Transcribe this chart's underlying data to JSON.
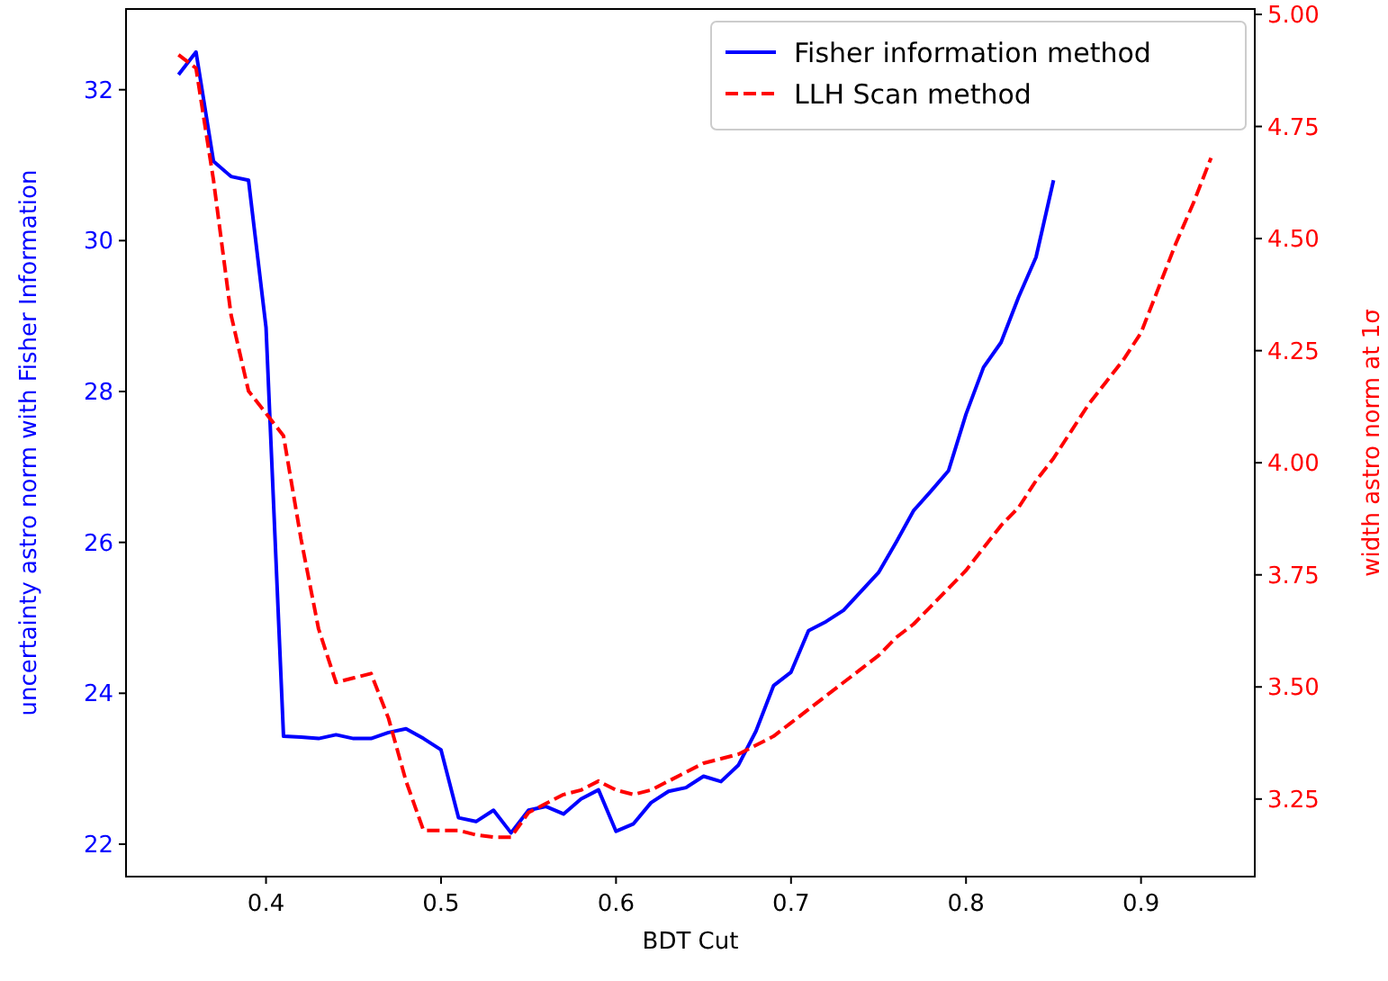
{
  "chart_data": {
    "type": "line",
    "xlabel": "BDT Cut",
    "ylabel": "uncertainty astro norm with Fisher Information",
    "y2label": "width astro norm at 1σ",
    "xlim": [
      0.32,
      0.965
    ],
    "xticks": [
      {
        "value": 0.4,
        "label": "0.4"
      },
      {
        "value": 0.5,
        "label": "0.5"
      },
      {
        "value": 0.6,
        "label": "0.6"
      },
      {
        "value": 0.7,
        "label": "0.7"
      },
      {
        "value": 0.8,
        "label": "0.8"
      },
      {
        "value": 0.9,
        "label": "0.9"
      }
    ],
    "ylim": [
      21.57,
      33.07
    ],
    "yticks": [
      22,
      24,
      26,
      28,
      30,
      32
    ],
    "y2lim": [
      3.077,
      5.012
    ],
    "y2ticks": [
      3.25,
      {
        "value": 3.5,
        "label": "3.50"
      },
      3.75,
      {
        "value": 4.0,
        "label": "4.00"
      },
      4.25,
      {
        "value": 4.5,
        "label": "4.50"
      },
      4.75,
      {
        "value": 5.0,
        "label": "5.00"
      }
    ],
    "legend": "top right",
    "grid": false,
    "series": [
      {
        "name": "Fisher information method",
        "color": "#0000ff",
        "line_style": "solid",
        "x": [
          0.35,
          0.36,
          0.37,
          0.38,
          0.39,
          0.4,
          0.41,
          0.42,
          0.43,
          0.44,
          0.45,
          0.46,
          0.47,
          0.48,
          0.49,
          0.5,
          0.51,
          0.52,
          0.53,
          0.54,
          0.55,
          0.56,
          0.57,
          0.58,
          0.59,
          0.6,
          0.61,
          0.62,
          0.63,
          0.64,
          0.65,
          0.66,
          0.67,
          0.68,
          0.69,
          0.7,
          0.71,
          0.72,
          0.73,
          0.74,
          0.75,
          0.76,
          0.77,
          0.78,
          0.79,
          0.8,
          0.81,
          0.82,
          0.83,
          0.84,
          0.85
        ],
        "values": [
          32.2,
          32.5,
          31.05,
          30.85,
          30.8,
          28.85,
          23.43,
          23.42,
          23.4,
          23.45,
          23.4,
          23.4,
          23.48,
          23.53,
          23.4,
          23.25,
          22.35,
          22.3,
          22.45,
          22.15,
          22.45,
          22.5,
          22.4,
          22.6,
          22.72,
          22.17,
          22.27,
          22.55,
          22.7,
          22.75,
          22.9,
          22.83,
          23.05,
          23.5,
          24.1,
          24.28,
          24.83,
          24.95,
          25.1,
          25.35,
          25.6,
          26.0,
          26.42,
          26.68,
          26.95,
          27.7,
          28.32,
          28.65,
          29.25,
          29.78,
          30.8
        ]
      },
      {
        "name": "LLH Scan method",
        "color": "#ff0000",
        "axis": "y2",
        "line_style": "dashed",
        "x": [
          0.35,
          0.36,
          0.37,
          0.38,
          0.39,
          0.4,
          0.41,
          0.42,
          0.43,
          0.44,
          0.45,
          0.46,
          0.47,
          0.48,
          0.49,
          0.5,
          0.51,
          0.52,
          0.53,
          0.54,
          0.55,
          0.56,
          0.57,
          0.58,
          0.59,
          0.6,
          0.61,
          0.62,
          0.63,
          0.64,
          0.65,
          0.66,
          0.67,
          0.68,
          0.69,
          0.7,
          0.71,
          0.72,
          0.73,
          0.74,
          0.75,
          0.76,
          0.77,
          0.78,
          0.79,
          0.8,
          0.81,
          0.82,
          0.83,
          0.84,
          0.85,
          0.86,
          0.87,
          0.88,
          0.89,
          0.9,
          0.91,
          0.92,
          0.93,
          0.94
        ],
        "values": [
          4.91,
          4.88,
          4.63,
          4.33,
          4.16,
          4.11,
          4.06,
          3.83,
          3.63,
          3.51,
          3.52,
          3.53,
          3.43,
          3.29,
          3.18,
          3.18,
          3.18,
          3.17,
          3.165,
          3.165,
          3.22,
          3.24,
          3.26,
          3.27,
          3.29,
          3.27,
          3.26,
          3.27,
          3.29,
          3.31,
          3.33,
          3.34,
          3.35,
          3.37,
          3.39,
          3.42,
          3.45,
          3.48,
          3.51,
          3.54,
          3.57,
          3.61,
          3.64,
          3.68,
          3.72,
          3.76,
          3.81,
          3.86,
          3.9,
          3.96,
          4.01,
          4.07,
          4.13,
          4.18,
          4.23,
          4.29,
          4.39,
          4.49,
          4.58,
          4.68
        ]
      }
    ]
  }
}
